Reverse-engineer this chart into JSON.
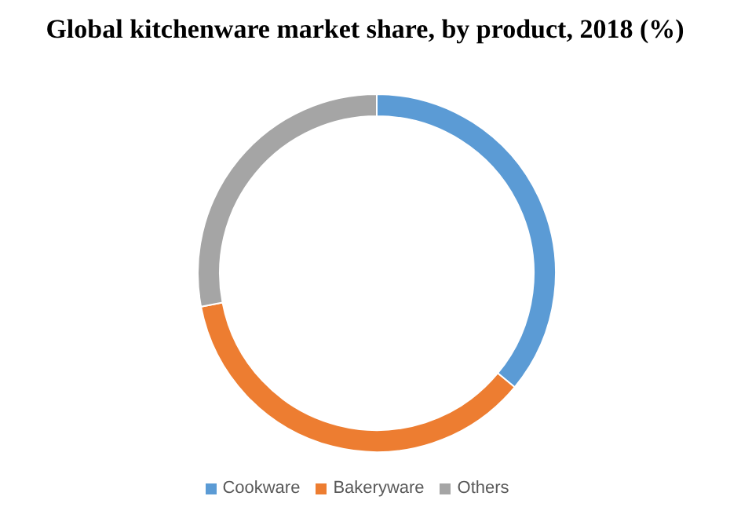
{
  "chart_data": {
    "type": "donut",
    "title": "Global kitchenware market share, by product, 2018 (%)",
    "categories": [
      "Cookware",
      "Bakeryware",
      "Others"
    ],
    "values": [
      36,
      36,
      28
    ],
    "colors": [
      "#5b9bd5",
      "#ed7d31",
      "#a5a5a5"
    ],
    "legend": "bottom"
  }
}
